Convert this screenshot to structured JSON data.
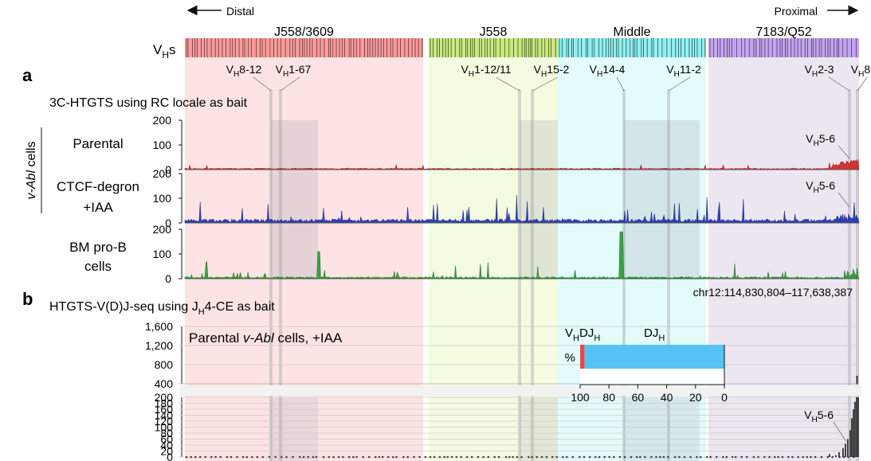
{
  "direction": {
    "distal": "Distal",
    "proximal": "Proximal"
  },
  "vh_track_label": "VHs",
  "regions": [
    {
      "name": "J558/3609",
      "color": "#ff9a9a",
      "shade": "#fde3e3"
    },
    {
      "name": "J558",
      "color": "#c9ec7a",
      "shade": "#f3fbe1"
    },
    {
      "name": "Middle",
      "color": "#8ef2f2",
      "shade": "#e3fbfb"
    },
    {
      "name": "7183/Q52",
      "color": "#c6a3f5",
      "shade": "#ece6f0"
    }
  ],
  "gene_labels": [
    "VH8-12",
    "VH1-67",
    "VH1-12/11",
    "VH15-2",
    "VH14-4",
    "VH11-2",
    "VH2-3",
    "VH8"
  ],
  "panel_a": {
    "letter": "a",
    "title": "3C-HTGTS using RC locale as bait",
    "group_label": "v-Abl cells",
    "tracks": [
      {
        "label": "Parental",
        "color": "#d42020",
        "ylim": [
          0,
          200
        ],
        "yticks": [
          0,
          100,
          200
        ],
        "annotation": "VH5-6"
      },
      {
        "label": "CTCF-degron\n+IAA",
        "color": "#1a2fb8",
        "ylim": [
          0,
          200
        ],
        "yticks": [
          0,
          100,
          200
        ],
        "annotation": "VH5-6"
      },
      {
        "label": "BM pro-B\ncells",
        "color": "#1fa02b",
        "ylim": [
          0,
          200
        ],
        "yticks": [
          0,
          100,
          200
        ],
        "annotation": ""
      }
    ],
    "coordinates": "chr12:114,830,804–117,638,387"
  },
  "panel_b": {
    "letter": "b",
    "title": "HTGTS-V(D)J-seq using JH4-CE as bait",
    "track_label": "Parental v-Abl cells, +IAA",
    "annotation": "VH5-6",
    "upper_yticks": [
      "400",
      "800",
      "1,200",
      "1,600"
    ],
    "lower_yticks": [
      "0",
      "20",
      "40",
      "60",
      "80",
      "100",
      "120",
      "140",
      "160",
      "180",
      "200"
    ]
  },
  "chart_data": {
    "type": "bar",
    "title": "",
    "xlabel": "%",
    "ylabel": "",
    "categories": [
      "VHDJH",
      "DJH"
    ],
    "values": [
      3,
      97
    ],
    "xlim": [
      100,
      0
    ],
    "xticks": [
      100,
      80,
      60,
      40,
      20,
      0
    ],
    "colors": [
      "#f04646",
      "#56c3f5"
    ]
  }
}
